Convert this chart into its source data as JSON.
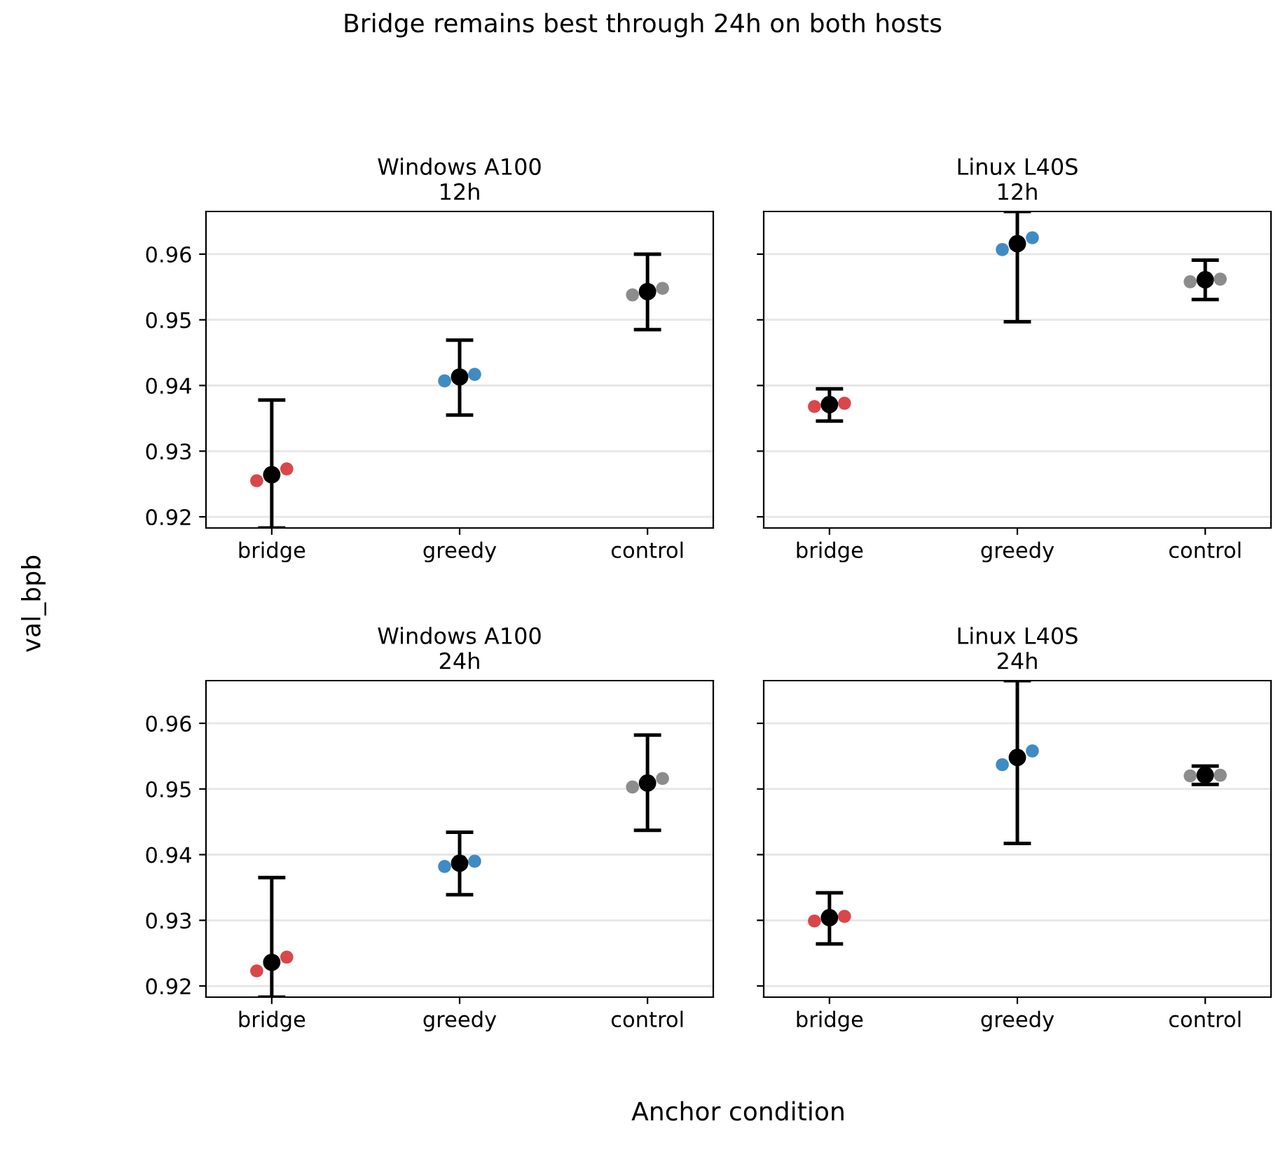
{
  "chart_data": [
    {
      "type": "scatter",
      "title": "Windows A100\n12h",
      "categories": [
        "bridge",
        "greedy",
        "control"
      ],
      "ylim": [
        0.9183,
        0.9665
      ],
      "yticks": [
        0.92,
        0.93,
        0.94,
        0.95,
        0.96
      ],
      "grid": "y",
      "marker": "circle",
      "tick_labels": "xy",
      "series": [
        {
          "type": "scatter",
          "x": [
            "bridge",
            "greedy",
            "control"
          ],
          "colors": [
            "#d9474a",
            "#3f8bc4",
            "#8c8c8c"
          ],
          "values": [
            0.9255,
            0.9407,
            0.9538
          ]
        },
        {
          "type": "scatter",
          "x": [
            "bridge",
            "greedy",
            "control"
          ],
          "colors": [
            "#d9474a",
            "#3f8bc4",
            "#8c8c8c"
          ],
          "values": [
            0.9273,
            0.9417,
            0.9548
          ]
        },
        {
          "type": "scatter",
          "x": [
            "bridge",
            "greedy",
            "control"
          ],
          "color": "#000000",
          "values": [
            0.9264,
            0.9413,
            0.9543
          ],
          "errors": [
            [
              0.9183,
              0.9378
            ],
            [
              0.9355,
              0.9469
            ],
            [
              0.9485,
              0.96
            ]
          ]
        }
      ]
    },
    {
      "type": "scatter",
      "title": "Linux L40S\n12h",
      "categories": [
        "bridge",
        "greedy",
        "control"
      ],
      "ylim": [
        0.9183,
        0.9665
      ],
      "yticks": [
        0.92,
        0.93,
        0.94,
        0.95,
        0.96
      ],
      "grid": "y",
      "marker": "circle",
      "tick_labels": "x",
      "series": [
        {
          "type": "scatter",
          "x": [
            "bridge",
            "greedy",
            "control"
          ],
          "colors": [
            "#d9474a",
            "#3f8bc4",
            "#8c8c8c"
          ],
          "values": [
            0.9368,
            0.9607,
            0.9558
          ]
        },
        {
          "type": "scatter",
          "x": [
            "bridge",
            "greedy",
            "control"
          ],
          "colors": [
            "#d9474a",
            "#3f8bc4",
            "#8c8c8c"
          ],
          "values": [
            0.9373,
            0.9625,
            0.9562
          ]
        },
        {
          "type": "scatter",
          "x": [
            "bridge",
            "greedy",
            "control"
          ],
          "color": "#000000",
          "values": [
            0.9371,
            0.9616,
            0.9561
          ],
          "errors": [
            [
              0.9346,
              0.9395
            ],
            [
              0.9497,
              0.9665
            ],
            [
              0.9531,
              0.9591
            ]
          ]
        }
      ]
    },
    {
      "type": "scatter",
      "title": "Windows A100\n24h",
      "categories": [
        "bridge",
        "greedy",
        "control"
      ],
      "ylim": [
        0.9183,
        0.9665
      ],
      "yticks": [
        0.92,
        0.93,
        0.94,
        0.95,
        0.96
      ],
      "grid": "y",
      "marker": "circle",
      "tick_labels": "xy",
      "series": [
        {
          "type": "scatter",
          "x": [
            "bridge",
            "greedy",
            "control"
          ],
          "colors": [
            "#d9474a",
            "#3f8bc4",
            "#8c8c8c"
          ],
          "values": [
            0.9223,
            0.9382,
            0.9503
          ]
        },
        {
          "type": "scatter",
          "x": [
            "bridge",
            "greedy",
            "control"
          ],
          "colors": [
            "#d9474a",
            "#3f8bc4",
            "#8c8c8c"
          ],
          "values": [
            0.9244,
            0.939,
            0.9516
          ]
        },
        {
          "type": "scatter",
          "x": [
            "bridge",
            "greedy",
            "control"
          ],
          "color": "#000000",
          "values": [
            0.9236,
            0.9387,
            0.9509
          ],
          "errors": [
            [
              0.9183,
              0.9365
            ],
            [
              0.9339,
              0.9434
            ],
            [
              0.9437,
              0.9582
            ]
          ]
        }
      ]
    },
    {
      "type": "scatter",
      "title": "Linux L40S\n24h",
      "categories": [
        "bridge",
        "greedy",
        "control"
      ],
      "ylim": [
        0.9183,
        0.9665
      ],
      "yticks": [
        0.92,
        0.93,
        0.94,
        0.95,
        0.96
      ],
      "grid": "y",
      "marker": "circle",
      "tick_labels": "x",
      "series": [
        {
          "type": "scatter",
          "x": [
            "bridge",
            "greedy",
            "control"
          ],
          "colors": [
            "#d9474a",
            "#3f8bc4",
            "#8c8c8c"
          ],
          "values": [
            0.9299,
            0.9537,
            0.952
          ]
        },
        {
          "type": "scatter",
          "x": [
            "bridge",
            "greedy",
            "control"
          ],
          "colors": [
            "#d9474a",
            "#3f8bc4",
            "#8c8c8c"
          ],
          "values": [
            0.9306,
            0.9558,
            0.9521
          ]
        },
        {
          "type": "scatter",
          "x": [
            "bridge",
            "greedy",
            "control"
          ],
          "color": "#000000",
          "values": [
            0.9304,
            0.9548,
            0.9521
          ],
          "errors": [
            [
              0.9264,
              0.9342
            ],
            [
              0.9417,
              0.9665
            ],
            [
              0.9507,
              0.9535
            ]
          ]
        }
      ]
    },
    {
      "type": "other",
      "title": "Bridge remains best through 24h on both hosts",
      "xlabel": "Anchor condition",
      "ylabel": "val_bpb"
    }
  ]
}
